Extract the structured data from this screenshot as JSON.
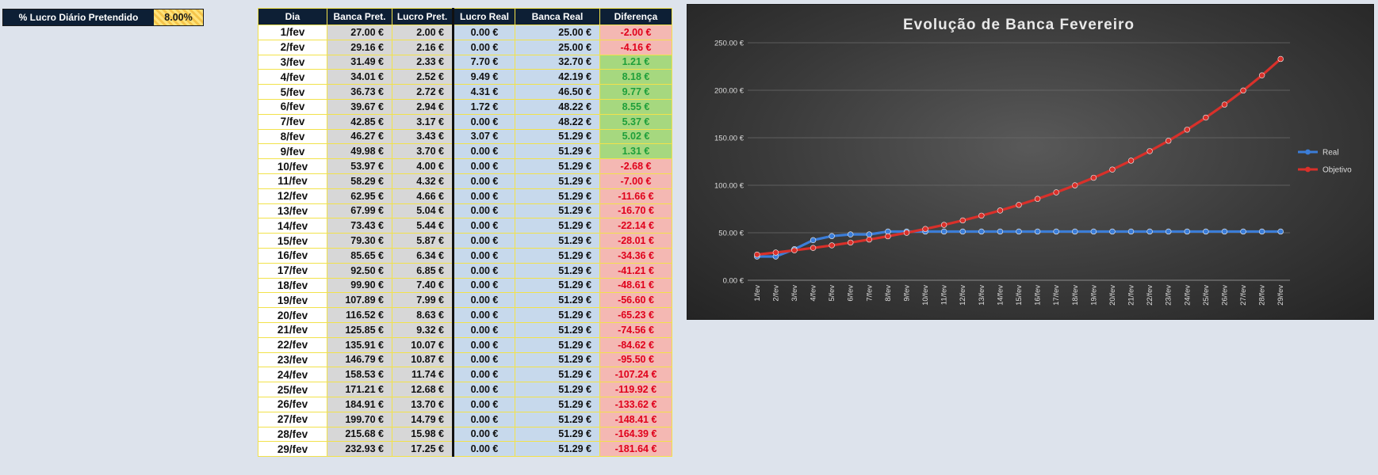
{
  "parameter": {
    "label": "% Lucro Diário Pretendido",
    "value": "8.00%"
  },
  "table": {
    "headers": [
      "Dia",
      "Banca Pret.",
      "Lucro Pret.",
      "Lucro Real",
      "Banca Real",
      "Diferença"
    ],
    "rows": [
      [
        "1/fev",
        "27.00 €",
        "2.00 €",
        "0.00 €",
        "25.00 €",
        "-2.00 €"
      ],
      [
        "2/fev",
        "29.16 €",
        "2.16 €",
        "0.00 €",
        "25.00 €",
        "-4.16 €"
      ],
      [
        "3/fev",
        "31.49 €",
        "2.33 €",
        "7.70 €",
        "32.70 €",
        "1.21 €"
      ],
      [
        "4/fev",
        "34.01 €",
        "2.52 €",
        "9.49 €",
        "42.19 €",
        "8.18 €"
      ],
      [
        "5/fev",
        "36.73 €",
        "2.72 €",
        "4.31 €",
        "46.50 €",
        "9.77 €"
      ],
      [
        "6/fev",
        "39.67 €",
        "2.94 €",
        "1.72 €",
        "48.22 €",
        "8.55 €"
      ],
      [
        "7/fev",
        "42.85 €",
        "3.17 €",
        "0.00 €",
        "48.22 €",
        "5.37 €"
      ],
      [
        "8/fev",
        "46.27 €",
        "3.43 €",
        "3.07 €",
        "51.29 €",
        "5.02 €"
      ],
      [
        "9/fev",
        "49.98 €",
        "3.70 €",
        "0.00 €",
        "51.29 €",
        "1.31 €"
      ],
      [
        "10/fev",
        "53.97 €",
        "4.00 €",
        "0.00 €",
        "51.29 €",
        "-2.68 €"
      ],
      [
        "11/fev",
        "58.29 €",
        "4.32 €",
        "0.00 €",
        "51.29 €",
        "-7.00 €"
      ],
      [
        "12/fev",
        "62.95 €",
        "4.66 €",
        "0.00 €",
        "51.29 €",
        "-11.66 €"
      ],
      [
        "13/fev",
        "67.99 €",
        "5.04 €",
        "0.00 €",
        "51.29 €",
        "-16.70 €"
      ],
      [
        "14/fev",
        "73.43 €",
        "5.44 €",
        "0.00 €",
        "51.29 €",
        "-22.14 €"
      ],
      [
        "15/fev",
        "79.30 €",
        "5.87 €",
        "0.00 €",
        "51.29 €",
        "-28.01 €"
      ],
      [
        "16/fev",
        "85.65 €",
        "6.34 €",
        "0.00 €",
        "51.29 €",
        "-34.36 €"
      ],
      [
        "17/fev",
        "92.50 €",
        "6.85 €",
        "0.00 €",
        "51.29 €",
        "-41.21 €"
      ],
      [
        "18/fev",
        "99.90 €",
        "7.40 €",
        "0.00 €",
        "51.29 €",
        "-48.61 €"
      ],
      [
        "19/fev",
        "107.89 €",
        "7.99 €",
        "0.00 €",
        "51.29 €",
        "-56.60 €"
      ],
      [
        "20/fev",
        "116.52 €",
        "8.63 €",
        "0.00 €",
        "51.29 €",
        "-65.23 €"
      ],
      [
        "21/fev",
        "125.85 €",
        "9.32 €",
        "0.00 €",
        "51.29 €",
        "-74.56 €"
      ],
      [
        "22/fev",
        "135.91 €",
        "10.07 €",
        "0.00 €",
        "51.29 €",
        "-84.62 €"
      ],
      [
        "23/fev",
        "146.79 €",
        "10.87 €",
        "0.00 €",
        "51.29 €",
        "-95.50 €"
      ],
      [
        "24/fev",
        "158.53 €",
        "11.74 €",
        "0.00 €",
        "51.29 €",
        "-107.24 €"
      ],
      [
        "25/fev",
        "171.21 €",
        "12.68 €",
        "0.00 €",
        "51.29 €",
        "-119.92 €"
      ],
      [
        "26/fev",
        "184.91 €",
        "13.70 €",
        "0.00 €",
        "51.29 €",
        "-133.62 €"
      ],
      [
        "27/fev",
        "199.70 €",
        "14.79 €",
        "0.00 €",
        "51.29 €",
        "-148.41 €"
      ],
      [
        "28/fev",
        "215.68 €",
        "15.98 €",
        "0.00 €",
        "51.29 €",
        "-164.39 €"
      ],
      [
        "29/fev",
        "232.93 €",
        "17.25 €",
        "0.00 €",
        "51.29 €",
        "-181.64 €"
      ]
    ]
  },
  "colors": {
    "header_bg": "#0d1f35",
    "negative_bg": "#f4b8b3",
    "negative_text": "#e0001b",
    "positive_bg": "#a6d87f",
    "positive_text": "#1e9f3a",
    "series_real": "#3b7dd8",
    "series_objetivo": "#d9302a"
  },
  "chart_data": {
    "type": "line",
    "title": "Evolução de Banca Fevereiro",
    "xlabel": "",
    "ylabel": "",
    "categories": [
      "1/fev",
      "2/fev",
      "3/fev",
      "4/fev",
      "5/fev",
      "6/fev",
      "7/fev",
      "8/fev",
      "9/fev",
      "10/fev",
      "11/fev",
      "12/fev",
      "13/fev",
      "14/fev",
      "15/fev",
      "16/fev",
      "17/fev",
      "18/fev",
      "19/fev",
      "20/fev",
      "21/fev",
      "22/fev",
      "23/fev",
      "24/fev",
      "25/fev",
      "26/fev",
      "27/fev",
      "28/fev",
      "29/fev"
    ],
    "series": [
      {
        "name": "Real",
        "values": [
          25.0,
          25.0,
          32.7,
          42.19,
          46.5,
          48.22,
          48.22,
          51.29,
          51.29,
          51.29,
          51.29,
          51.29,
          51.29,
          51.29,
          51.29,
          51.29,
          51.29,
          51.29,
          51.29,
          51.29,
          51.29,
          51.29,
          51.29,
          51.29,
          51.29,
          51.29,
          51.29,
          51.29,
          51.29
        ]
      },
      {
        "name": "Objetivo",
        "values": [
          27.0,
          29.16,
          31.49,
          34.01,
          36.73,
          39.67,
          42.85,
          46.27,
          49.98,
          53.97,
          58.29,
          62.95,
          67.99,
          73.43,
          79.3,
          85.65,
          92.5,
          99.9,
          107.89,
          116.52,
          125.85,
          135.91,
          146.79,
          158.53,
          171.21,
          184.91,
          199.7,
          215.68,
          232.93
        ]
      }
    ],
    "y_ticks": [
      "0.00 €",
      "50.00 €",
      "100.00 €",
      "150.00 €",
      "200.00 €",
      "250.00 €"
    ],
    "ylim": [
      0,
      250
    ],
    "grid": true,
    "legend_position": "right"
  }
}
